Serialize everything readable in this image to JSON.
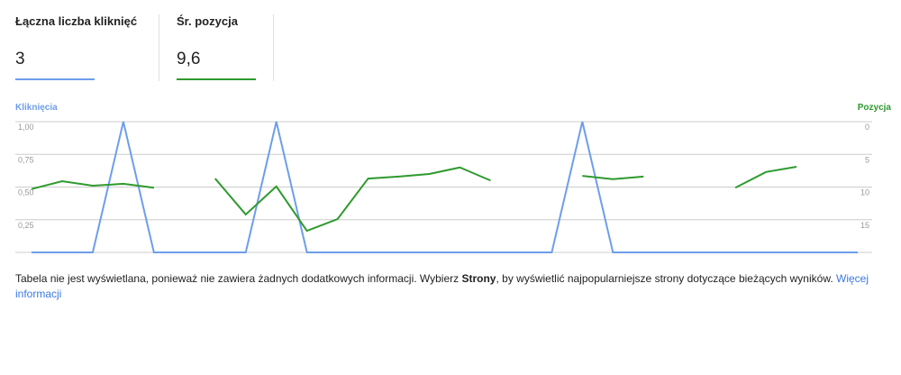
{
  "metrics": [
    {
      "label": "Łączna liczba kliknięć",
      "value": "3",
      "color": "#6d9eeb"
    },
    {
      "label": "Śr. pozycja",
      "value": "9,6",
      "color": "#2e9a2e"
    }
  ],
  "chart_data": {
    "type": "line",
    "categories": [
      null,
      null,
      null,
      null,
      null,
      null,
      null,
      null,
      null,
      null,
      null,
      null,
      null,
      null,
      null,
      null,
      null,
      null,
      null,
      null,
      null,
      null,
      null,
      null,
      null,
      null,
      null,
      null
    ],
    "series": [
      {
        "name": "Kliknięcia",
        "color": "#6d9eeb",
        "values": [
          0,
          0,
          0,
          1,
          0,
          0,
          0,
          0,
          1,
          0,
          0,
          0,
          0,
          0,
          0,
          0,
          0,
          0,
          1,
          0,
          0,
          0,
          0,
          0,
          0,
          0,
          0,
          0
        ]
      },
      {
        "name": "Pozycja",
        "color": "#2e9a2e",
        "axis": "y2",
        "values": [
          10.3,
          9.1,
          9.8,
          9.5,
          10.1,
          null,
          8.7,
          14.2,
          9.9,
          16.7,
          14.9,
          8.7,
          8.4,
          8.0,
          7.0,
          9.0,
          null,
          null,
          8.3,
          8.8,
          8.4,
          null,
          null,
          10.1,
          7.7,
          6.9,
          null,
          null
        ]
      }
    ],
    "ylim": [
      0,
      1
    ],
    "yticks": [
      {
        "value": 1,
        "label": "1,00"
      },
      {
        "value": 0.75,
        "label": "0,75"
      },
      {
        "value": 0.5,
        "label": "0,50"
      },
      {
        "value": 0.25,
        "label": "0,25"
      }
    ],
    "y2lim": [
      20,
      0
    ],
    "y2ticks": [
      0,
      5,
      10,
      15
    ],
    "grid": true
  },
  "footer": {
    "text_before": "Tabela nie jest wyświetlana, ponieważ nie zawiera żadnych dodatkowych informacji. Wybierz ",
    "bold": "Strony",
    "text_after": ", by wyświetlić najpopularniejsze strony dotyczące bieżących wyników. ",
    "link": "Więcej informacji"
  }
}
